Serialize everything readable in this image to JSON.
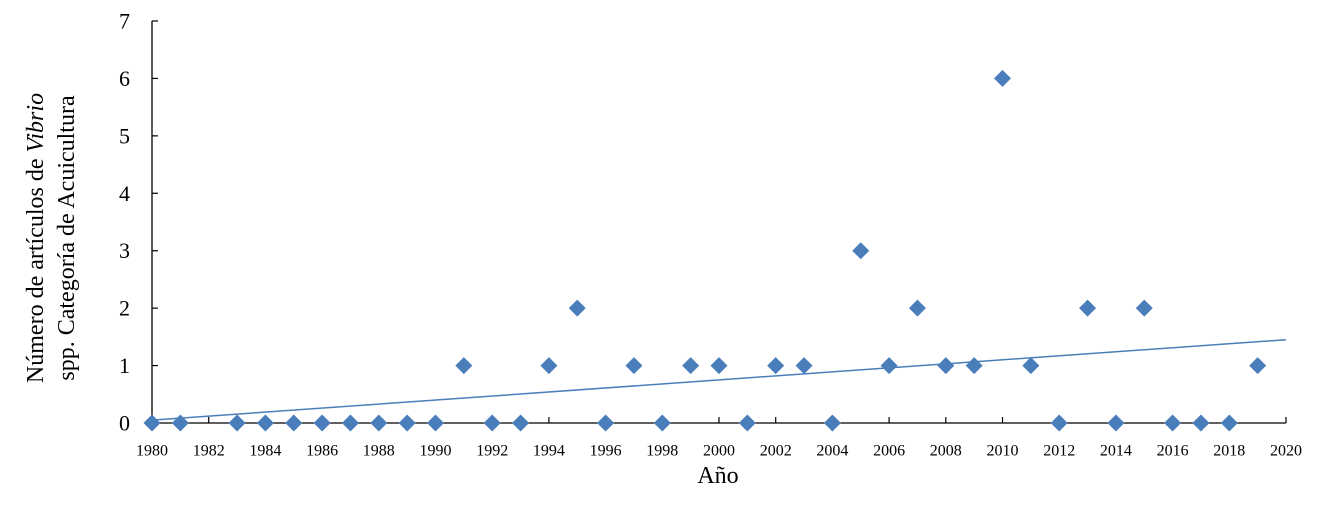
{
  "chart_data": {
    "type": "scatter",
    "xlabel": "Año",
    "ylabel": {
      "line1_prefix": "Número de artículos de ",
      "line1_italic": "Vibrio",
      "line2": "spp.  Categoría de Acuicultura"
    },
    "xlim": [
      1980,
      2020
    ],
    "ylim": [
      0,
      7
    ],
    "x_ticks": [
      1980,
      1982,
      1984,
      1986,
      1988,
      1990,
      1992,
      1994,
      1996,
      1998,
      2000,
      2002,
      2004,
      2006,
      2008,
      2010,
      2012,
      2014,
      2016,
      2018,
      2020
    ],
    "y_ticks": [
      0,
      1,
      2,
      3,
      4,
      5,
      6,
      7
    ],
    "marker": "diamond",
    "color": "#4a7ebb",
    "trendline": {
      "type": "linear",
      "x": [
        1980,
        2020
      ],
      "y": [
        0.05,
        1.45
      ]
    },
    "points": [
      {
        "x": 1980,
        "y": 0
      },
      {
        "x": 1981,
        "y": 0
      },
      {
        "x": 1983,
        "y": 0
      },
      {
        "x": 1984,
        "y": 0
      },
      {
        "x": 1985,
        "y": 0
      },
      {
        "x": 1986,
        "y": 0
      },
      {
        "x": 1987,
        "y": 0
      },
      {
        "x": 1988,
        "y": 0
      },
      {
        "x": 1989,
        "y": 0
      },
      {
        "x": 1990,
        "y": 0
      },
      {
        "x": 1991,
        "y": 1
      },
      {
        "x": 1992,
        "y": 0
      },
      {
        "x": 1993,
        "y": 0
      },
      {
        "x": 1994,
        "y": 1
      },
      {
        "x": 1995,
        "y": 2
      },
      {
        "x": 1996,
        "y": 0
      },
      {
        "x": 1997,
        "y": 1
      },
      {
        "x": 1998,
        "y": 0
      },
      {
        "x": 1999,
        "y": 1
      },
      {
        "x": 2000,
        "y": 1
      },
      {
        "x": 2001,
        "y": 0
      },
      {
        "x": 2002,
        "y": 1
      },
      {
        "x": 2003,
        "y": 1
      },
      {
        "x": 2004,
        "y": 0
      },
      {
        "x": 2005,
        "y": 3
      },
      {
        "x": 2006,
        "y": 1
      },
      {
        "x": 2007,
        "y": 2
      },
      {
        "x": 2008,
        "y": 1
      },
      {
        "x": 2009,
        "y": 1
      },
      {
        "x": 2010,
        "y": 6
      },
      {
        "x": 2011,
        "y": 1
      },
      {
        "x": 2012,
        "y": 0
      },
      {
        "x": 2013,
        "y": 2
      },
      {
        "x": 2014,
        "y": 0
      },
      {
        "x": 2015,
        "y": 2
      },
      {
        "x": 2016,
        "y": 0
      },
      {
        "x": 2017,
        "y": 0
      },
      {
        "x": 2018,
        "y": 0
      },
      {
        "x": 2019,
        "y": 1
      }
    ]
  }
}
